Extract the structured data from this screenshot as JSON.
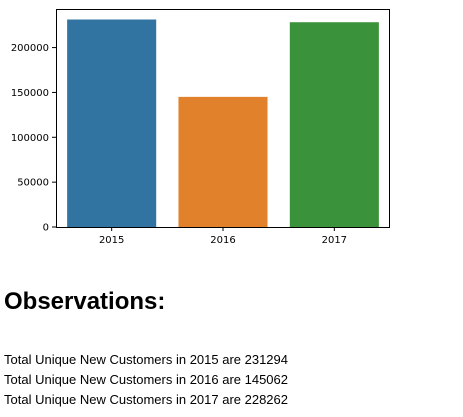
{
  "chart_data": {
    "type": "bar",
    "categories": [
      "2015",
      "2016",
      "2017"
    ],
    "values": [
      231294,
      145062,
      228262
    ],
    "ylim": [
      0,
      243000
    ],
    "y_ticks": [
      0,
      50000,
      100000,
      150000,
      200000
    ],
    "y_tick_labels": [
      "0",
      "50000",
      "100000",
      "150000",
      "200000"
    ],
    "title": "",
    "xlabel": "",
    "ylabel": "",
    "grid": false,
    "colors": [
      "#3274a1",
      "#e1812c",
      "#3a923a"
    ]
  },
  "observations": {
    "heading": "Observations:",
    "lines": [
      "Total Unique New Customers in 2015 are 231294",
      "Total Unique New Customers in 2016 are 145062",
      "Total Unique New Customers in 2017 are 228262"
    ]
  }
}
